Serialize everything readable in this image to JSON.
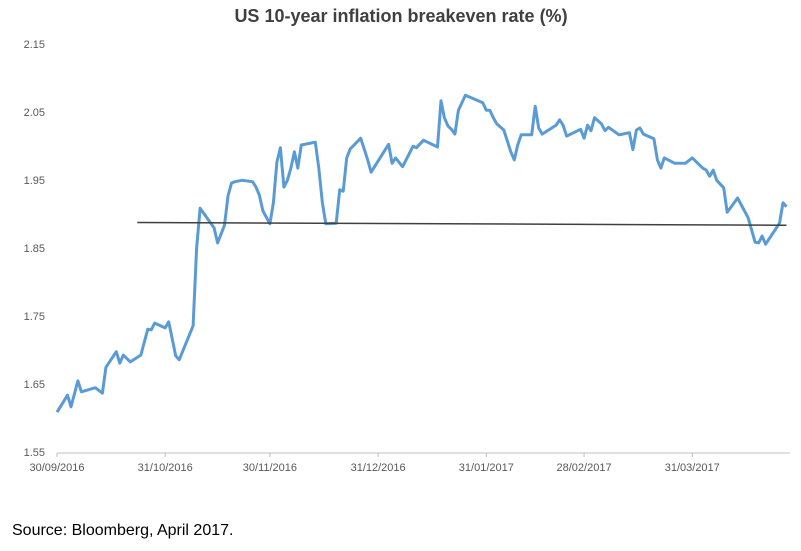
{
  "chart_data": {
    "type": "line",
    "title": "US 10-year inflation breakeven rate (%)",
    "source": "Source: Bloomberg, April 2017.",
    "xlim": [
      "30/09/2016",
      "28/04/2017"
    ],
    "xticks": [
      "30/09/2016",
      "31/10/2016",
      "30/11/2016",
      "31/12/2016",
      "31/01/2017",
      "28/02/2017",
      "31/03/2017"
    ],
    "ylim": [
      1.55,
      2.15
    ],
    "yticks": [
      1.55,
      1.65,
      1.75,
      1.85,
      1.95,
      2.05,
      2.15
    ],
    "grid": false,
    "series": [
      {
        "color": "#5b9bd5",
        "x": [
          "30/09/2016",
          "03/10/2016",
          "04/10/2016",
          "06/10/2016",
          "07/10/2016",
          "11/10/2016",
          "13/10/2016",
          "14/10/2016",
          "17/10/2016",
          "18/10/2016",
          "19/10/2016",
          "21/10/2016",
          "24/10/2016",
          "26/10/2016",
          "27/10/2016",
          "28/10/2016",
          "31/10/2016",
          "01/11/2016",
          "03/11/2016",
          "04/11/2016",
          "08/11/2016",
          "09/11/2016",
          "10/11/2016",
          "14/11/2016",
          "15/11/2016",
          "17/11/2016",
          "18/11/2016",
          "19/11/2016",
          "20/11/2016",
          "22/11/2016",
          "25/11/2016",
          "26/11/2016",
          "27/11/2016",
          "28/11/2016",
          "30/11/2016",
          "01/12/2016",
          "02/12/2016",
          "03/12/2016",
          "04/12/2016",
          "05/12/2016",
          "06/12/2016",
          "07/12/2016",
          "08/12/2016",
          "09/12/2016",
          "13/12/2016",
          "14/12/2016",
          "15/12/2016",
          "16/12/2016",
          "19/12/2016",
          "20/12/2016",
          "21/12/2016",
          "22/12/2016",
          "23/12/2016",
          "26/12/2016",
          "28/12/2016",
          "29/12/2016",
          "03/01/2017",
          "04/01/2017",
          "05/01/2017",
          "07/01/2017",
          "10/01/2017",
          "11/01/2017",
          "13/01/2017",
          "17/01/2017",
          "18/01/2017",
          "19/01/2017",
          "20/01/2017",
          "21/01/2017",
          "22/01/2017",
          "23/01/2017",
          "25/01/2017",
          "30/01/2017",
          "31/01/2017",
          "01/02/2017",
          "02/02/2017",
          "03/02/2017",
          "05/02/2017",
          "07/02/2017",
          "08/02/2017",
          "09/02/2017",
          "10/02/2017",
          "13/02/2017",
          "14/02/2017",
          "15/02/2017",
          "16/02/2017",
          "20/02/2017",
          "21/02/2017",
          "22/02/2017",
          "23/02/2017",
          "27/02/2017",
          "28/02/2017",
          "01/03/2017",
          "02/03/2017",
          "03/03/2017",
          "05/03/2017",
          "06/03/2017",
          "07/03/2017",
          "10/03/2017",
          "11/03/2017",
          "13/03/2017",
          "14/03/2017",
          "15/03/2017",
          "16/03/2017",
          "17/03/2017",
          "20/03/2017",
          "21/03/2017",
          "22/03/2017",
          "23/03/2017",
          "26/03/2017",
          "29/03/2017",
          "31/03/2017",
          "03/04/2017",
          "04/04/2017",
          "05/04/2017",
          "06/04/2017",
          "07/04/2017",
          "09/04/2017",
          "10/04/2017",
          "13/04/2017",
          "16/04/2017",
          "18/04/2017",
          "19/04/2017",
          "20/04/2017",
          "21/04/2017",
          "25/04/2017",
          "26/04/2017",
          "27/04/2017"
        ],
        "values": [
          1.61,
          1.635,
          1.618,
          1.656,
          1.64,
          1.646,
          1.638,
          1.676,
          1.699,
          1.682,
          1.694,
          1.684,
          1.694,
          1.732,
          1.731,
          1.741,
          1.734,
          1.743,
          1.693,
          1.687,
          1.737,
          1.851,
          1.91,
          1.881,
          1.859,
          1.885,
          1.928,
          1.947,
          1.949,
          1.951,
          1.949,
          1.941,
          1.929,
          1.906,
          1.887,
          1.918,
          1.978,
          1.999,
          1.941,
          1.951,
          1.969,
          1.993,
          1.969,
          2.003,
          2.007,
          1.969,
          1.919,
          1.887,
          1.888,
          1.937,
          1.935,
          1.984,
          1.997,
          2.013,
          1.981,
          1.963,
          2.004,
          1.976,
          1.984,
          1.971,
          2.001,
          1.999,
          2.01,
          2.0,
          2.068,
          2.043,
          2.031,
          2.026,
          2.019,
          2.054,
          2.076,
          2.065,
          2.054,
          2.054,
          2.043,
          2.034,
          2.025,
          1.993,
          1.981,
          2.003,
          2.018,
          2.018,
          2.06,
          2.028,
          2.019,
          2.032,
          2.04,
          2.032,
          2.016,
          2.026,
          2.013,
          2.032,
          2.024,
          2.043,
          2.034,
          2.024,
          2.029,
          2.018,
          2.019,
          2.021,
          1.996,
          2.025,
          2.028,
          2.019,
          2.012,
          1.981,
          1.969,
          1.984,
          1.976,
          1.976,
          1.984,
          1.969,
          1.966,
          1.957,
          1.966,
          1.951,
          1.94,
          1.904,
          1.925,
          1.896,
          1.86,
          1.859,
          1.869,
          1.857,
          1.888,
          1.918,
          1.912
        ]
      },
      {
        "color": "#404040",
        "x": [
          "23/10/2016",
          "27/04/2017"
        ],
        "values": [
          1.889,
          1.885
        ]
      }
    ]
  }
}
